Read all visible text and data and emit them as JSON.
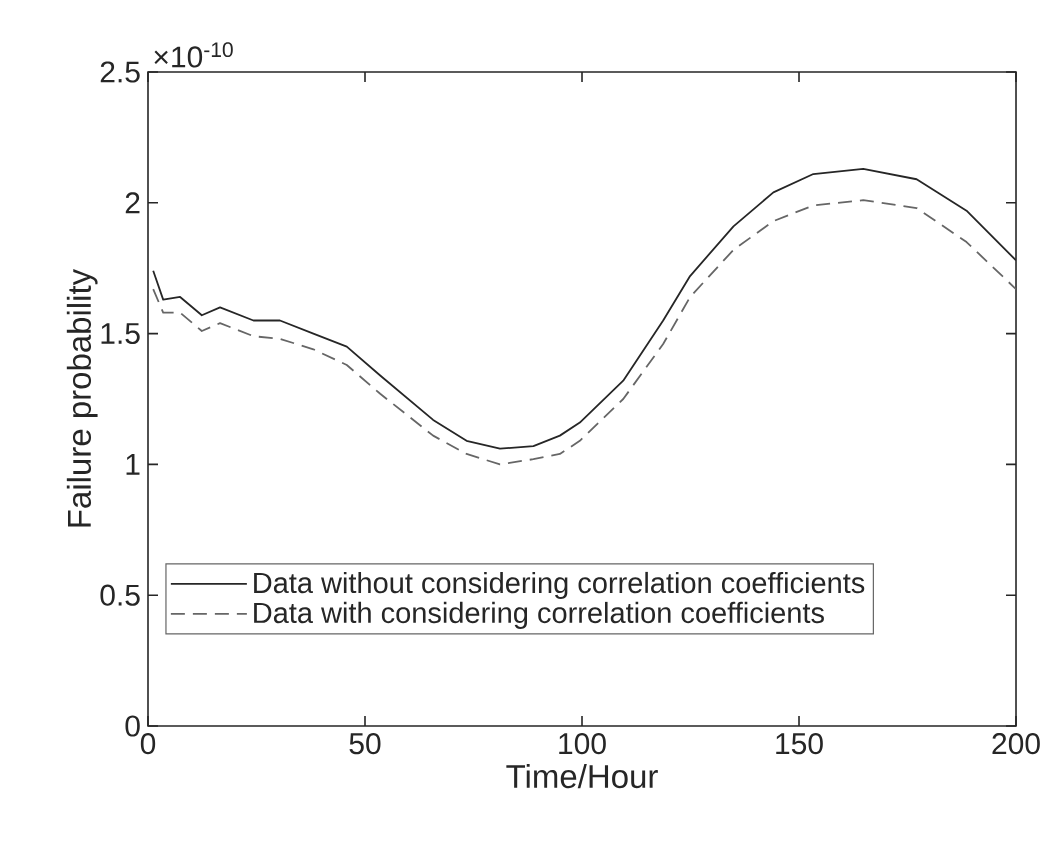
{
  "chart_data": {
    "type": "line",
    "xlabel": "Time/Hour",
    "ylabel": "Failure probability",
    "annotations": [
      "×10$^{-10}$"
    ],
    "xlim": [
      0,
      200
    ],
    "xticks": [
      0,
      50,
      100,
      150,
      200
    ],
    "ylim": [
      0,
      2.5
    ],
    "yticks": [
      0,
      0.5,
      1,
      1.5,
      2,
      2.5
    ],
    "grid": false,
    "legend": "bottom",
    "series": [
      {
        "name": "Data without considering correlation coefficients",
        "color": "#262626",
        "line_style": "solid",
        "x": [
          1.2,
          3.5,
          7.4,
          12.4,
          16.6,
          24.3,
          30.4,
          38.1,
          45.8,
          53.5,
          65.7,
          73.4,
          81.1,
          88.8,
          94.9,
          99.5,
          109.5,
          118.7,
          124.9,
          134.9,
          144.1,
          153.3,
          164.8,
          177.1,
          188.6,
          200
        ],
        "values": [
          1.74,
          1.63,
          1.64,
          1.57,
          1.6,
          1.55,
          1.55,
          1.5,
          1.45,
          1.34,
          1.17,
          1.09,
          1.06,
          1.07,
          1.11,
          1.16,
          1.32,
          1.55,
          1.72,
          1.91,
          2.04,
          2.11,
          2.13,
          2.09,
          1.97,
          1.78
        ]
      },
      {
        "name": "Data with considering correlation coefficients",
        "color": "#666666",
        "line_style": "dashed",
        "x": [
          1.2,
          3.5,
          7.4,
          12.4,
          16.6,
          24.3,
          30.4,
          38.1,
          45.8,
          53.5,
          65.7,
          73.4,
          81.1,
          88.8,
          94.9,
          99.5,
          109.5,
          118.7,
          124.9,
          134.9,
          144.1,
          153.3,
          164.8,
          177.1,
          188.6,
          200
        ],
        "values": [
          1.67,
          1.58,
          1.58,
          1.51,
          1.54,
          1.49,
          1.48,
          1.44,
          1.38,
          1.27,
          1.11,
          1.04,
          1.0,
          1.02,
          1.04,
          1.09,
          1.25,
          1.46,
          1.64,
          1.82,
          1.93,
          1.99,
          2.01,
          1.98,
          1.85,
          1.67
        ]
      }
    ]
  }
}
